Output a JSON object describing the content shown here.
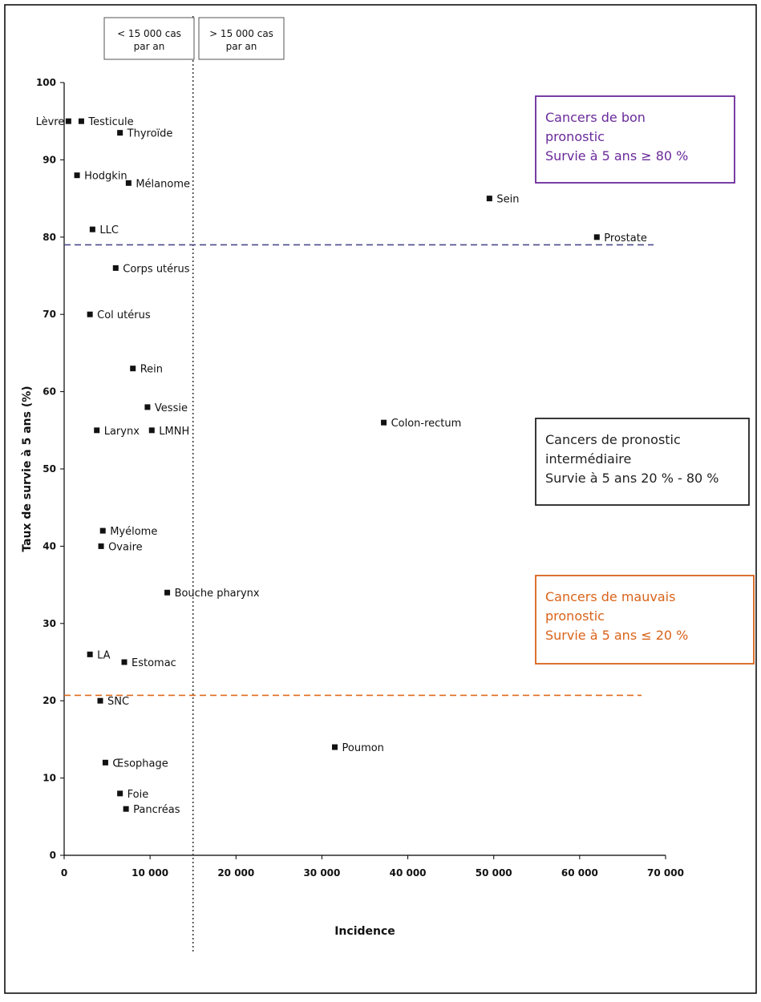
{
  "chart_data": {
    "type": "scatter",
    "xlabel": "Incidence",
    "ylabel": "Taux de survie à 5 ans (%)",
    "xlim": [
      0,
      70000
    ],
    "ylim": [
      0,
      100
    ],
    "x_ticks": [
      0,
      10000,
      20000,
      30000,
      40000,
      50000,
      60000,
      70000
    ],
    "x_tick_labels": [
      "0",
      "10 000",
      "20 000",
      "30 000",
      "40 000",
      "50 000",
      "60 000",
      "70 000"
    ],
    "y_ticks": [
      0,
      10,
      20,
      30,
      40,
      50,
      60,
      70,
      80,
      90,
      100
    ],
    "y_tick_labels": [
      "0",
      "10",
      "20",
      "30",
      "40",
      "50",
      "60",
      "70",
      "80",
      "90",
      "100"
    ],
    "grid": false,
    "points": [
      {
        "label": "Lèvre",
        "x": 500,
        "y": 95
      },
      {
        "label": "Testicule",
        "x": 2000,
        "y": 95
      },
      {
        "label": "Thyroïde",
        "x": 6500,
        "y": 93.5
      },
      {
        "label": "Hodgkin",
        "x": 1500,
        "y": 88
      },
      {
        "label": "Mélanome",
        "x": 7500,
        "y": 87
      },
      {
        "label": "Sein",
        "x": 49500,
        "y": 85
      },
      {
        "label": "LLC",
        "x": 3300,
        "y": 81
      },
      {
        "label": "Prostate",
        "x": 62000,
        "y": 80
      },
      {
        "label": "Corps utérus",
        "x": 6000,
        "y": 76
      },
      {
        "label": "Col utérus",
        "x": 3000,
        "y": 70
      },
      {
        "label": "Rein",
        "x": 8000,
        "y": 63
      },
      {
        "label": "Vessie",
        "x": 9700,
        "y": 58
      },
      {
        "label": "Larynx",
        "x": 3800,
        "y": 55
      },
      {
        "label": "LMNH",
        "x": 10200,
        "y": 55
      },
      {
        "label": "Colon-rectum",
        "x": 37200,
        "y": 56
      },
      {
        "label": "Myélome",
        "x": 4500,
        "y": 42
      },
      {
        "label": "Ovaire",
        "x": 4300,
        "y": 40
      },
      {
        "label": "Bouche pharynx",
        "x": 12000,
        "y": 34
      },
      {
        "label": "LA",
        "x": 3000,
        "y": 26
      },
      {
        "label": "Estomac",
        "x": 7000,
        "y": 25
      },
      {
        "label": "SNC",
        "x": 4200,
        "y": 20
      },
      {
        "label": "Poumon",
        "x": 31500,
        "y": 14
      },
      {
        "label": "Œsophage",
        "x": 4800,
        "y": 12
      },
      {
        "label": "Foie",
        "x": 6500,
        "y": 8
      },
      {
        "label": "Pancréas",
        "x": 7200,
        "y": 6
      }
    ],
    "reference_lines": [
      {
        "orientation": "vertical",
        "value": 15000,
        "style": "dotted",
        "color": "#333333"
      },
      {
        "orientation": "horizontal",
        "value": 79,
        "style": "dashed",
        "color": "#4a4a8a"
      },
      {
        "orientation": "horizontal",
        "value": 20.7,
        "style": "dashed",
        "color": "#e06a1a"
      }
    ],
    "top_labels": [
      {
        "lines": [
          "< 15 000 cas",
          "par an"
        ]
      },
      {
        "lines": [
          "> 15 000 cas",
          "par an"
        ]
      }
    ],
    "annotation_boxes": [
      {
        "lines": [
          "Cancers de bon",
          "pronostic",
          "Survie à 5 ans ≥ 80 %"
        ],
        "color": "#6a2a9a"
      },
      {
        "lines": [
          "Cancers de pronostic",
          "intermédiaire",
          "Survie à 5 ans 20 % - 80 %"
        ],
        "color": "#222222"
      },
      {
        "lines": [
          "Cancers de mauvais",
          "pronostic",
          "Survie à 5 ans ≤ 20 %"
        ],
        "color": "#d9631a"
      }
    ]
  }
}
